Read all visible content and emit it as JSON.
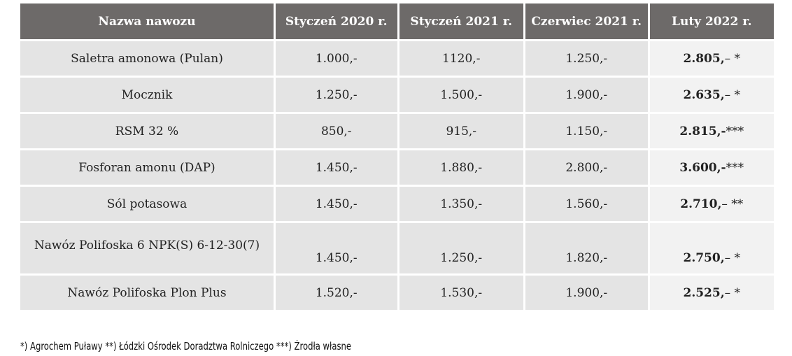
{
  "table": {
    "headers": [
      "Nazwa nawozu",
      "Styczeń 2020 r.",
      "Styczeń 2021 r.",
      "Czerwiec 2021 r.",
      "Luty 2022 r."
    ],
    "rows": [
      {
        "name": "Saletra amonowa (Pulan)",
        "jan2020": "1.000,-",
        "jan2021": "1120,-",
        "jun2021": "1.250,-",
        "feb2022": "2.805,",
        "feb2022_suffix": "– *"
      },
      {
        "name": "Mocznik",
        "jan2020": "1.250,-",
        "jan2021": "1.500,-",
        "jun2021": "1.900,-",
        "feb2022": "2.635,",
        "feb2022_suffix": "– *"
      },
      {
        "name": "RSM 32 %",
        "jan2020": "850,-",
        "jan2021": "915,-",
        "jun2021": "1.150,-",
        "feb2022": "2.815,-",
        "feb2022_suffix": "***"
      },
      {
        "name": "Fosforan amonu (DAP)",
        "jan2020": "1.450,-",
        "jan2021": "1.880,-",
        "jun2021": "2.800,-",
        "feb2022": "3.600,-",
        "feb2022_suffix": "***"
      },
      {
        "name": "Sól potasowa",
        "jan2020": "1.450,-",
        "jan2021": "1.350,-",
        "jun2021": "1.560,-",
        "feb2022": "2.710,",
        "feb2022_suffix": "– **"
      },
      {
        "name": "Nawóz Polifoska 6 NPK(S) 6-12-30(7)",
        "jan2020": "1.450,-",
        "jan2021": "1.250,-",
        "jun2021": "1.820,-",
        "feb2022": "2.750,",
        "feb2022_suffix": "– *"
      },
      {
        "name": "Nawóz Polifoska Plon Plus",
        "jan2020": "1.520,-",
        "jan2021": "1.530,-",
        "jun2021": "1.900,-",
        "feb2022": "2.525,",
        "feb2022_suffix": "– *"
      }
    ]
  },
  "footnote": "*) Agrochem Puławy **) Łódzki Ośrodek Doradztwa Rolniczego ***) Źrodła własne"
}
